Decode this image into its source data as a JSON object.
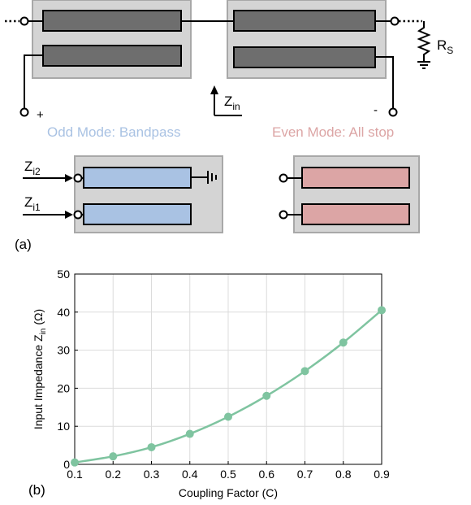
{
  "diagram": {
    "panel_a_label": "(a)",
    "rs_label": "R",
    "rs_sub": "S",
    "plus_label": "+",
    "minus_label": "-",
    "zin_label": "Z",
    "zin_sub": "in",
    "odd_mode_label": "Odd Mode: Bandpass",
    "even_mode_label": "Even Mode: All stop",
    "zi2_label": "Z",
    "zi2_sub": "i2",
    "zi1_label": "Z",
    "zi1_sub": "i1",
    "colors": {
      "substrate": "#d4d4d4",
      "line_top": "#6e6e6e",
      "odd_line": "#a9c2e3",
      "even_line": "#dca5a5",
      "odd_text": "#a9c2e3",
      "even_text": "#dca5a5",
      "curve": "#7fc4a0"
    }
  },
  "chart_data": {
    "type": "line",
    "panel_label": "(b)",
    "xlabel": "Coupling Factor (C)",
    "ylabel_main": "Input Impedance Z",
    "ylabel_sub": "in",
    "ylabel_unit": "(Ω)",
    "xlim": [
      0.1,
      0.9
    ],
    "ylim": [
      0,
      50
    ],
    "xticks": [
      "0.1",
      "0.2",
      "0.3",
      "0.4",
      "0.5",
      "0.6",
      "0.7",
      "0.8",
      "0.9"
    ],
    "yticks": [
      "0",
      "10",
      "20",
      "30",
      "40",
      "50"
    ],
    "grid": true,
    "x": [
      0.1,
      0.2,
      0.3,
      0.4,
      0.5,
      0.6,
      0.7,
      0.8,
      0.9
    ],
    "y": [
      0.5,
      2.1,
      4.5,
      8.0,
      12.5,
      18.0,
      24.5,
      32.0,
      40.5
    ]
  }
}
